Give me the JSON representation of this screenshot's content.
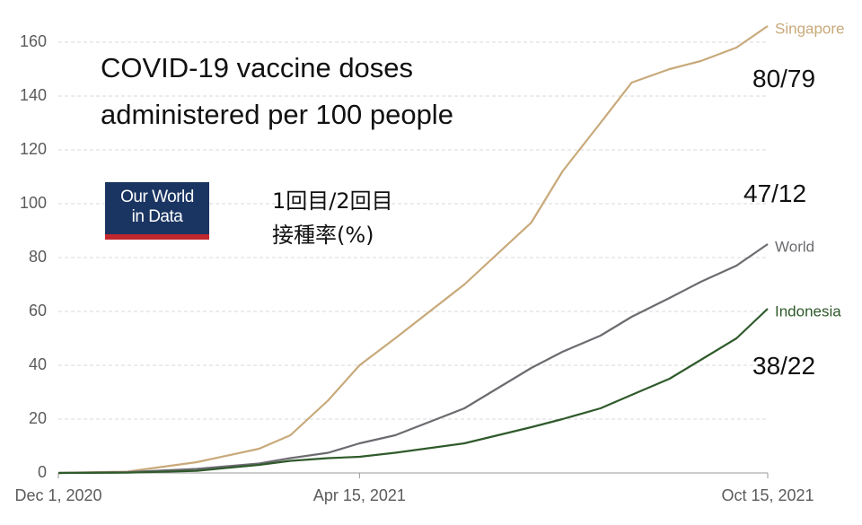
{
  "chart_data": {
    "type": "line",
    "title": "COVID-19 vaccine doses administered per 100 people",
    "logo": [
      "Our World",
      "in Data"
    ],
    "note": [
      "1回目/2回目",
      "接種率(%)"
    ],
    "annotations": [
      "80/79",
      "47/12",
      "38/22"
    ],
    "x": [
      "2020-12-01",
      "2021-01-01",
      "2021-02-01",
      "2021-03-01",
      "2021-03-15",
      "2021-04-01",
      "2021-04-15",
      "2021-05-01",
      "2021-06-01",
      "2021-07-01",
      "2021-07-15",
      "2021-08-01",
      "2021-08-15",
      "2021-09-01",
      "2021-09-15",
      "2021-10-01",
      "2021-10-15"
    ],
    "series": [
      {
        "name": "Singapore",
        "color": "#c8a97a",
        "values": [
          0,
          0.5,
          4,
          9,
          14,
          27,
          40,
          50,
          70,
          93,
          112,
          130,
          145,
          150,
          153,
          158,
          166
        ]
      },
      {
        "name": "World",
        "color": "#6b6b70",
        "values": [
          0,
          0.3,
          1.5,
          3.5,
          5.5,
          7.5,
          11,
          14,
          24,
          39,
          45,
          51,
          58,
          65,
          71,
          77,
          85
        ]
      },
      {
        "name": "Indonesia",
        "color": "#2f5a2b",
        "values": [
          0,
          0.1,
          0.8,
          3,
          4.5,
          5.5,
          6,
          7.5,
          11,
          17,
          20,
          24,
          29,
          35,
          42,
          50,
          61
        ]
      }
    ],
    "xlim": [
      "2020-12-01",
      "2021-10-15"
    ],
    "xticks": [
      {
        "value": "2020-12-01",
        "label": "Dec 1, 2020"
      },
      {
        "value": "2021-04-15",
        "label": "Apr 15, 2021"
      },
      {
        "value": "2021-10-15",
        "label": "Oct 15, 2021"
      }
    ],
    "ylim": [
      0,
      166
    ],
    "yticks": [
      0,
      20,
      40,
      60,
      80,
      100,
      120,
      140,
      160
    ],
    "grid": true
  }
}
